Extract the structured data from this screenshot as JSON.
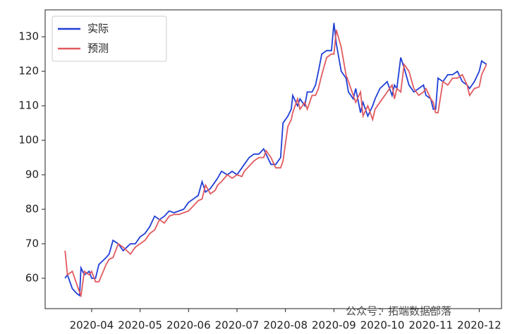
{
  "chart_data": {
    "type": "line",
    "x": [
      3.45,
      3.5,
      3.6,
      3.7,
      3.75,
      3.78,
      3.85,
      3.95,
      4.0,
      4.08,
      4.15,
      4.3,
      4.36,
      4.44,
      4.55,
      4.65,
      4.8,
      4.9,
      5.0,
      5.1,
      5.2,
      5.3,
      5.4,
      5.5,
      5.6,
      5.7,
      5.8,
      5.9,
      6.0,
      6.1,
      6.2,
      6.28,
      6.35,
      6.45,
      6.55,
      6.6,
      6.68,
      6.8,
      6.9,
      7.0,
      7.1,
      7.15,
      7.25,
      7.35,
      7.45,
      7.55,
      7.6,
      7.7,
      7.8,
      7.9,
      7.95,
      8.05,
      8.12,
      8.15,
      8.25,
      8.3,
      8.4,
      8.45,
      8.55,
      8.62,
      8.68,
      8.75,
      8.85,
      8.95,
      9.0,
      9.05,
      9.15,
      9.25,
      9.3,
      9.4,
      9.45,
      9.55,
      9.6,
      9.7,
      9.8,
      9.85,
      9.95,
      10.1,
      10.2,
      10.25,
      10.3,
      10.38,
      10.45,
      10.55,
      10.65,
      10.75,
      10.85,
      10.9,
      11.0,
      11.05,
      11.1,
      11.15,
      11.25,
      11.35,
      11.45,
      11.55,
      11.65,
      11.75,
      11.8,
      11.9,
      12.0,
      12.05,
      12.15
    ],
    "series": [
      {
        "name": "实际",
        "color": "#1f3fd6",
        "values": [
          60,
          61,
          57,
          55.5,
          55,
          63,
          61,
          62,
          60,
          60,
          64,
          66,
          67,
          71,
          70,
          68,
          70,
          70,
          72,
          73,
          75,
          78,
          77,
          78,
          79.5,
          79,
          79.5,
          80,
          82,
          83,
          84,
          88,
          85,
          86,
          88,
          89,
          91,
          90,
          91,
          90,
          92,
          93,
          95,
          96,
          96,
          97.5,
          96,
          93,
          93,
          95,
          105,
          107,
          109,
          113,
          110,
          112,
          110,
          114,
          114,
          116,
          120,
          125,
          126,
          126,
          134,
          128,
          120,
          118,
          114,
          112,
          115,
          108,
          111,
          107,
          110,
          112,
          115,
          117,
          113,
          116,
          115,
          124,
          121,
          116,
          114,
          115,
          116,
          113,
          112,
          109,
          109,
          118,
          117,
          119,
          119,
          120,
          117,
          116,
          115,
          117,
          120,
          123,
          122
        ]
      },
      {
        "name": "预测",
        "color": "#e05a5f",
        "values": [
          68,
          61,
          62,
          58,
          56,
          55,
          62,
          61,
          62,
          59,
          59,
          64,
          65.5,
          66,
          70,
          69,
          67,
          69,
          70,
          71,
          73,
          74,
          77,
          76,
          78,
          78.5,
          78.5,
          79,
          79.5,
          81,
          82.5,
          83,
          87,
          84.5,
          85.5,
          87,
          88,
          90,
          89,
          90,
          89.5,
          91,
          92.5,
          94,
          95,
          95,
          97,
          95,
          92,
          92,
          94,
          104,
          106,
          108,
          112,
          109,
          111,
          109,
          113,
          113,
          115,
          119,
          124,
          125,
          125,
          132,
          127,
          119,
          117,
          113,
          111,
          114,
          107,
          110,
          106,
          109,
          111,
          114,
          116,
          112,
          115,
          114,
          122,
          120,
          115,
          113,
          114,
          115,
          112,
          111,
          108,
          108,
          117,
          116,
          118,
          118,
          119,
          116,
          113,
          115,
          115.5,
          119,
          122
        ]
      }
    ],
    "xlim": [
      3.04,
      12.46
    ],
    "xticks": [
      {
        "value": 4,
        "label": "2020-04"
      },
      {
        "value": 5,
        "label": "2020-05"
      },
      {
        "value": 6,
        "label": "2020-06"
      },
      {
        "value": 7,
        "label": "2020-07"
      },
      {
        "value": 8,
        "label": "2020-08"
      },
      {
        "value": 9,
        "label": "2020-09"
      },
      {
        "value": 10,
        "label": "2020-10"
      },
      {
        "value": 11,
        "label": "2020-11"
      },
      {
        "value": 12,
        "label": "2020-12"
      }
    ],
    "ylim": [
      51.2,
      137.8
    ],
    "yticks": [
      60,
      70,
      80,
      90,
      100,
      110,
      120,
      130
    ],
    "legend": "upper-left",
    "watermark": "公众号：拓端数据部落"
  }
}
